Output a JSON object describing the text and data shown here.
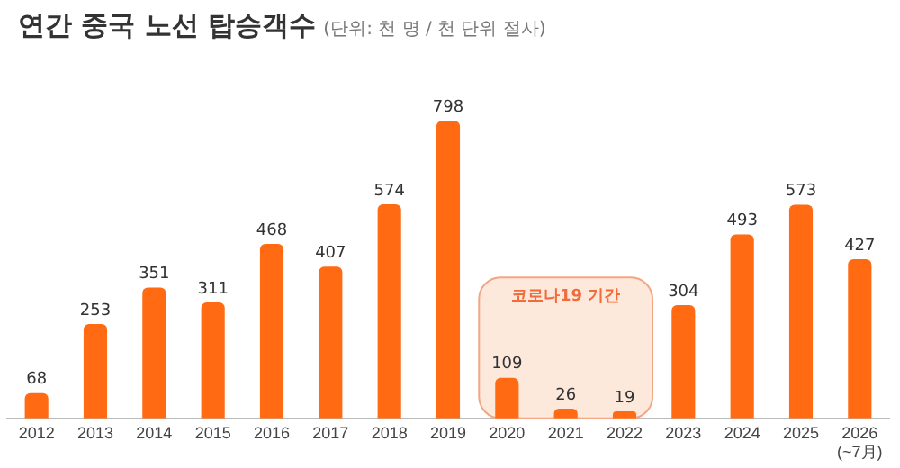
{
  "chart_data": {
    "type": "bar",
    "title": "연간 중국 노선 탑승객수",
    "subtitle": "(단위: 천 명 / 천 단위 절사)",
    "categories": [
      "2012",
      "2013",
      "2014",
      "2015",
      "2016",
      "2017",
      "2018",
      "2019",
      "2020",
      "2021",
      "2022",
      "2023",
      "2024",
      "2025",
      "2026\n(~7月)"
    ],
    "values": [
      68,
      253,
      351,
      311,
      468,
      407,
      574,
      798,
      109,
      26,
      19,
      304,
      493,
      573,
      427
    ],
    "color": "#ff6a13",
    "data_labels": true,
    "legend": false,
    "grid": false,
    "bands": [
      {
        "axis": "x",
        "from": "2020",
        "to": "2022",
        "label": "코로나19 기간",
        "color": "#fde8dc"
      }
    ]
  }
}
